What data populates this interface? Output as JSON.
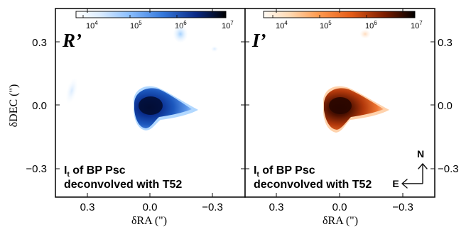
{
  "figure": {
    "panels": [
      {
        "id": "r",
        "label": "R’",
        "annotation_line1_prefix": "I",
        "annotation_line1_subscript": "t",
        "annotation_line1_suffix": " of BP Psc",
        "annotation_line2": "deconvolved with T52",
        "colorbar_ticks": [
          {
            "base": "10",
            "exp": "4"
          },
          {
            "base": "10",
            "exp": "5"
          },
          {
            "base": "10",
            "exp": "6"
          },
          {
            "base": "10",
            "exp": "7"
          }
        ],
        "x_ticks": [
          "0.3",
          "0.0",
          "−0.3"
        ],
        "colors": {
          "low": "#ffffff",
          "mid": "#1f63c8",
          "high": "#000000"
        }
      },
      {
        "id": "i",
        "label": "I’",
        "annotation_line1_prefix": "I",
        "annotation_line1_subscript": "t",
        "annotation_line1_suffix": " of BP Psc",
        "annotation_line2": "deconvolved with T52",
        "colorbar_ticks": [
          {
            "base": "10",
            "exp": "4"
          },
          {
            "base": "10",
            "exp": "5"
          },
          {
            "base": "10",
            "exp": "6"
          },
          {
            "base": "10",
            "exp": "7"
          }
        ],
        "x_ticks": [
          "0.3",
          "0.0",
          "−0.3"
        ],
        "colors": {
          "low": "#fff5ea",
          "mid": "#d35012",
          "high": "#100000"
        }
      }
    ],
    "y_ticks": [
      "0.3",
      "0.0",
      "−0.3"
    ],
    "x_label": "δRA (\")",
    "y_label": "δDEC (\")",
    "compass": {
      "north": "N",
      "east": "E"
    }
  }
}
